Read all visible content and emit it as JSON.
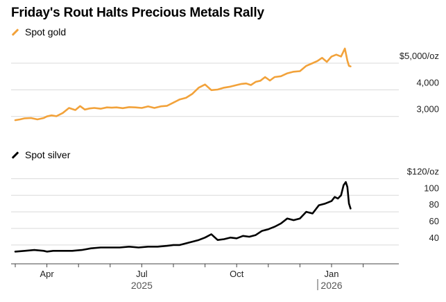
{
  "title": "Friday's Rout Halts Precious Metals Rally",
  "colors": {
    "gold": "#f2a23a",
    "silver": "#000000",
    "grid": "#d9d9d9"
  },
  "chart_data": [
    {
      "type": "line",
      "name": "Spot gold",
      "legend_label": "Spot gold",
      "unit": "$/oz",
      "ylim": [
        2550,
        5600
      ],
      "yticks": [
        {
          "value": 3000,
          "label": "3,000"
        },
        {
          "value": 4000,
          "label": "4,000"
        },
        {
          "value": 5000,
          "label": "$5,000/oz"
        }
      ],
      "x_months_since_2025_03": [
        0,
        0.15,
        0.3,
        0.5,
        0.7,
        0.9,
        1.0,
        1.15,
        1.3,
        1.5,
        1.7,
        1.9,
        2.05,
        2.2,
        2.35,
        2.5,
        2.7,
        2.9,
        3.05,
        3.2,
        3.4,
        3.6,
        3.8,
        4.0,
        4.2,
        4.4,
        4.6,
        4.8,
        5.0,
        5.2,
        5.4,
        5.6,
        5.8,
        6.0,
        6.2,
        6.4,
        6.6,
        6.8,
        7.0,
        7.15,
        7.3,
        7.45,
        7.6,
        7.75,
        7.9,
        8.05,
        8.2,
        8.4,
        8.6,
        8.8,
        9.0,
        9.2,
        9.4,
        9.55,
        9.7,
        9.85,
        10.0,
        10.15,
        10.3,
        10.42,
        10.5,
        10.55,
        10.6
      ],
      "values": [
        2860,
        2890,
        2930,
        2940,
        2890,
        2940,
        3000,
        3040,
        3010,
        3130,
        3320,
        3240,
        3390,
        3260,
        3300,
        3320,
        3290,
        3340,
        3330,
        3340,
        3310,
        3350,
        3340,
        3320,
        3380,
        3320,
        3380,
        3400,
        3520,
        3640,
        3700,
        3850,
        4080,
        4200,
        3990,
        4010,
        4080,
        4120,
        4180,
        4220,
        4240,
        4180,
        4300,
        4340,
        4480,
        4350,
        4480,
        4510,
        4620,
        4680,
        4700,
        4900,
        5000,
        5080,
        5200,
        5050,
        5250,
        5320,
        5250,
        5550,
        5100,
        4900,
        4880
      ]
    },
    {
      "type": "line",
      "name": "Spot silver",
      "legend_label": "Spot silver",
      "unit": "$/oz",
      "ylim": [
        24,
        122
      ],
      "yticks": [
        {
          "value": 40,
          "label": "40"
        },
        {
          "value": 60,
          "label": "60"
        },
        {
          "value": 80,
          "label": "80"
        },
        {
          "value": 100,
          "label": "100"
        },
        {
          "value": 120,
          "label": "$120/oz"
        }
      ],
      "x_months_since_2025_03": [
        0,
        0.3,
        0.6,
        0.9,
        1.0,
        1.2,
        1.5,
        1.8,
        2.1,
        2.4,
        2.7,
        3.0,
        3.3,
        3.6,
        3.9,
        4.2,
        4.5,
        4.8,
        5.0,
        5.2,
        5.4,
        5.6,
        5.8,
        6.0,
        6.2,
        6.4,
        6.6,
        6.8,
        7.0,
        7.2,
        7.4,
        7.6,
        7.8,
        8.0,
        8.2,
        8.4,
        8.6,
        8.8,
        9.0,
        9.2,
        9.4,
        9.6,
        9.8,
        10.0,
        10.1,
        10.2,
        10.3,
        10.38,
        10.45,
        10.5,
        10.55,
        10.6
      ],
      "values": [
        32,
        33,
        34,
        33,
        32,
        33,
        33,
        33,
        34,
        36,
        37,
        37,
        37,
        38,
        37,
        38,
        38,
        39,
        40,
        40,
        42,
        44,
        46,
        49,
        53,
        46,
        47,
        49,
        48,
        51,
        50,
        52,
        57,
        59,
        62,
        66,
        72,
        70,
        72,
        80,
        78,
        88,
        90,
        93,
        98,
        96,
        100,
        112,
        116,
        110,
        90,
        84
      ]
    }
  ],
  "x_axis": {
    "month_ticks": [
      {
        "month": 1,
        "label": "Apr"
      },
      {
        "month": 4,
        "label": "Jul"
      },
      {
        "month": 7,
        "label": "Oct"
      },
      {
        "month": 10,
        "label": "Jan"
      }
    ],
    "year_labels": [
      {
        "month": 4,
        "label": "2025"
      },
      {
        "month": 10,
        "label": "2026"
      }
    ]
  }
}
